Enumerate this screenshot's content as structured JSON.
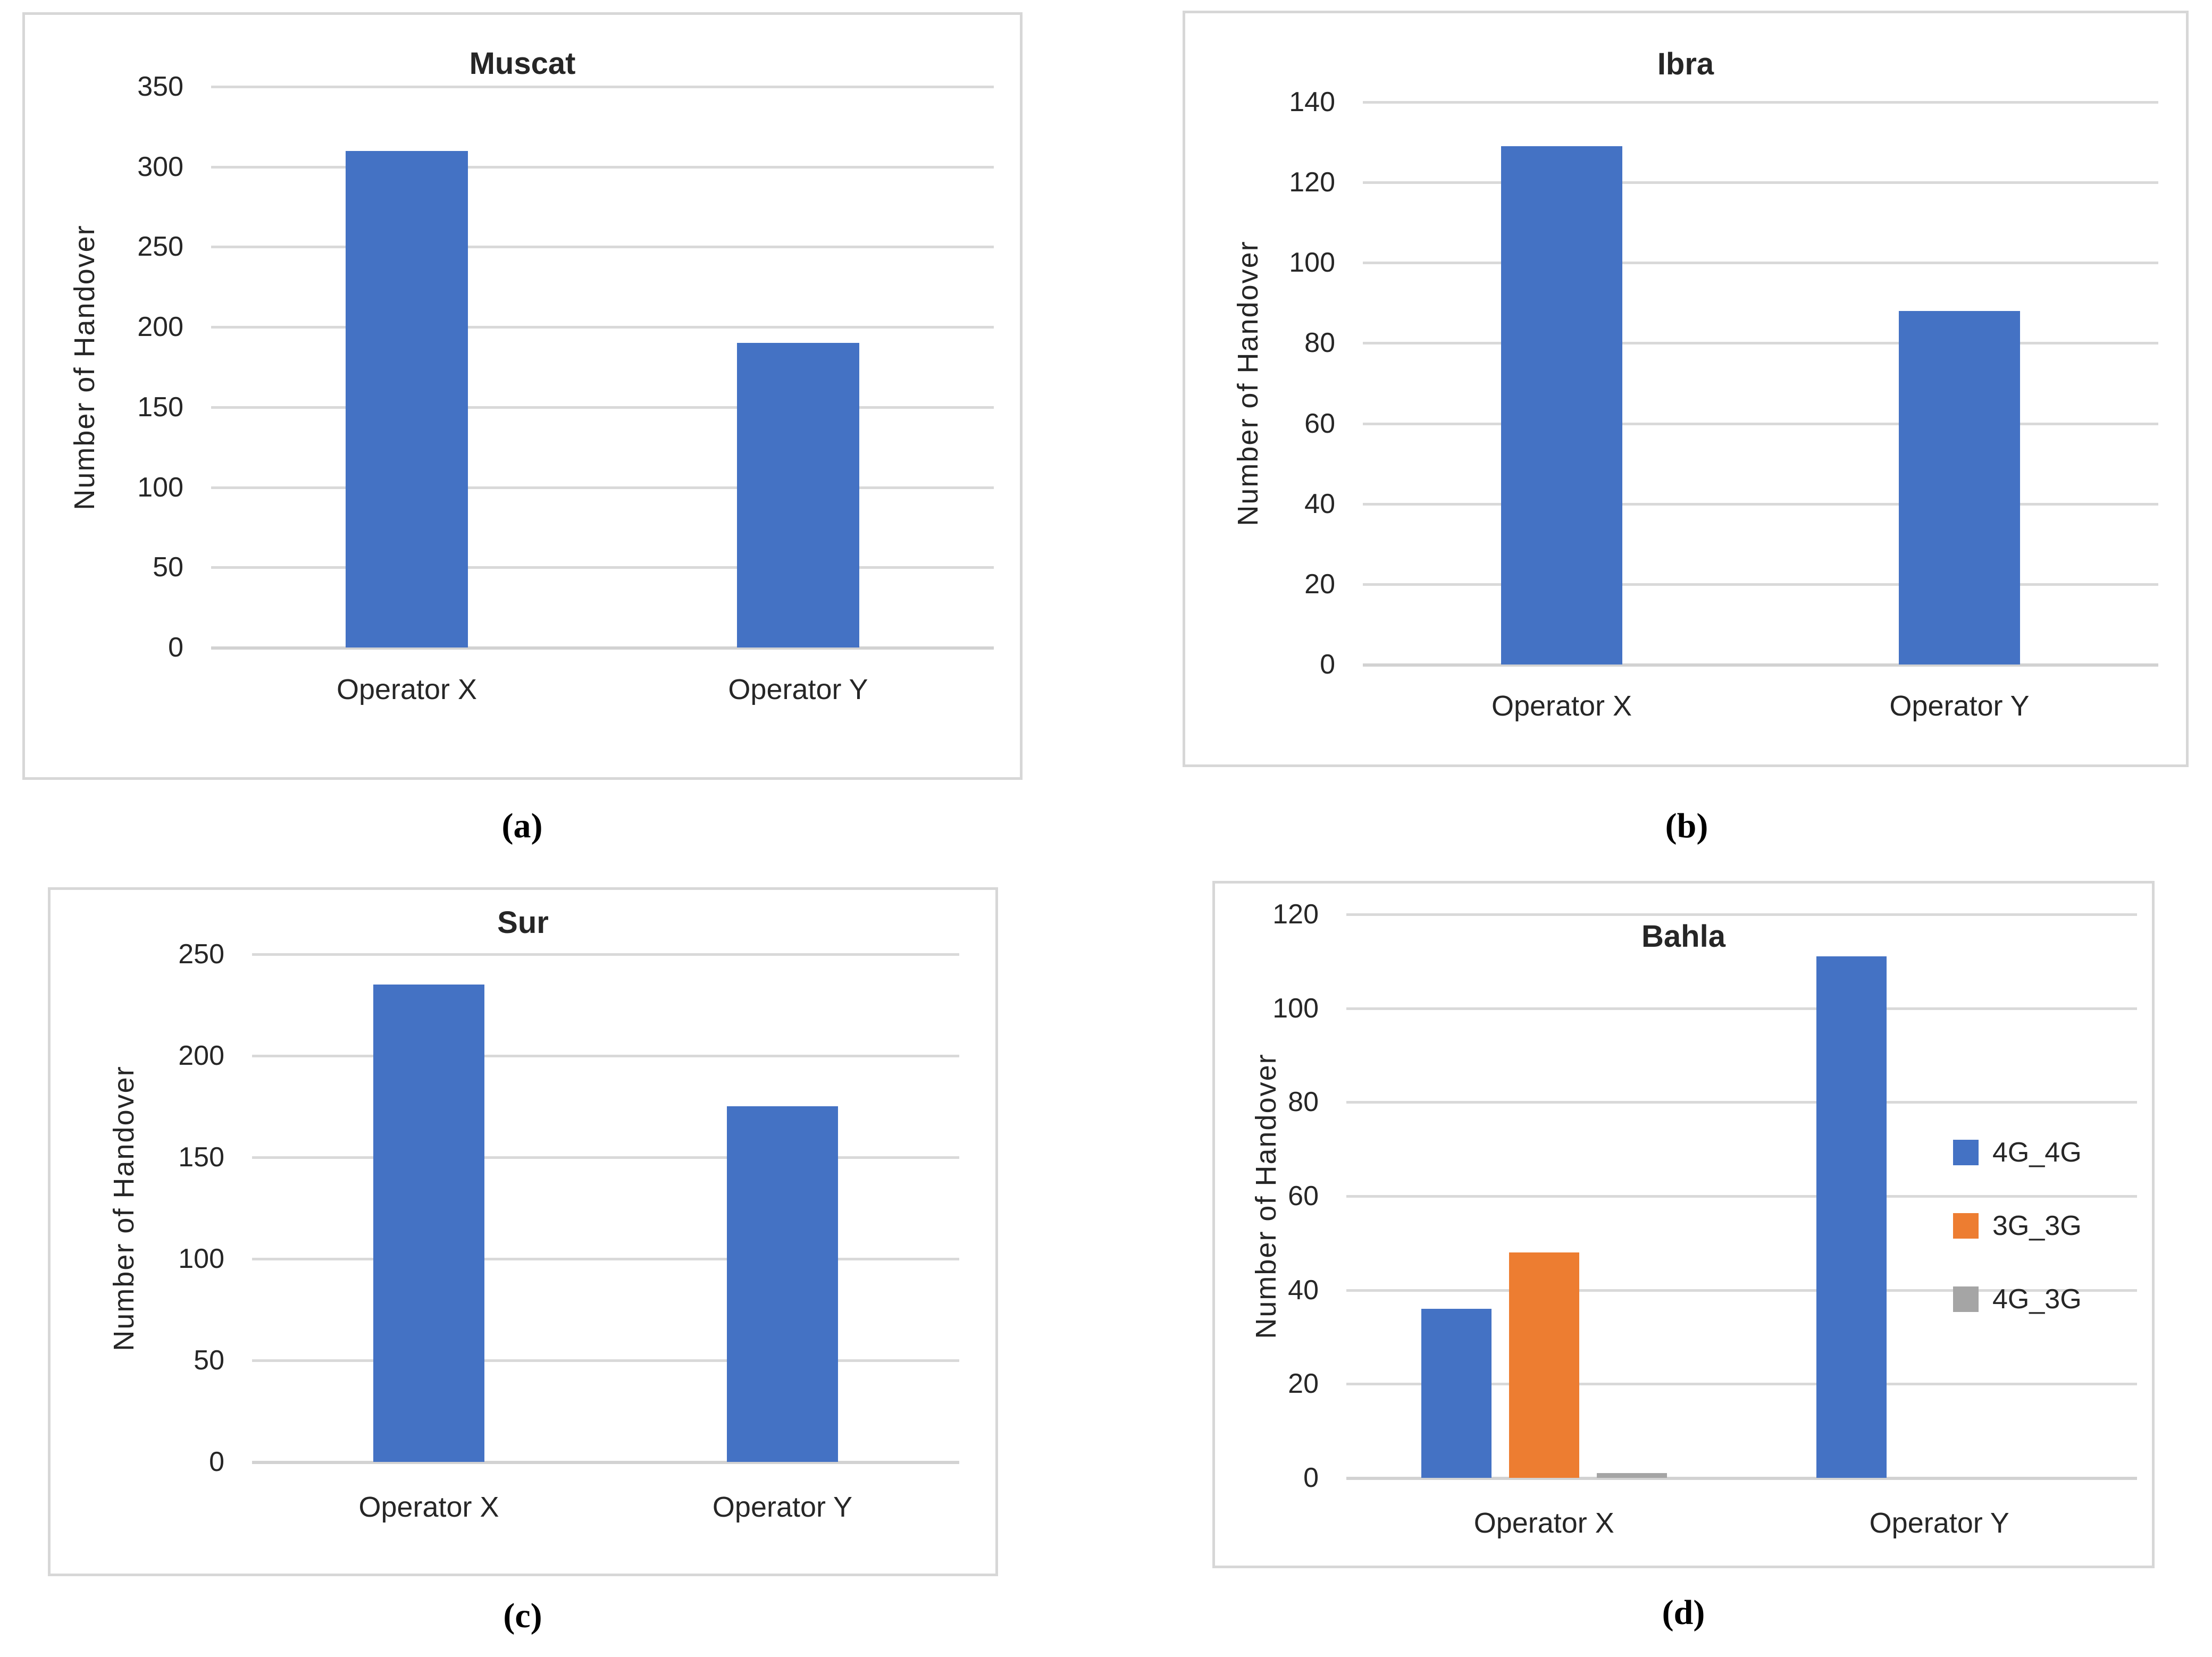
{
  "palette": {
    "bar_blue": "#4472C4",
    "bar_orange": "#ED7D31",
    "bar_gray": "#A5A5A5",
    "gridline": "#D9D9D9",
    "panel_border": "#D7D7D7",
    "text": "#262626"
  },
  "chart_data": [
    {
      "type": "bar",
      "title": "Muscat",
      "ylabel": "Number of Handover",
      "categories": [
        "Operator X",
        "Operator Y"
      ],
      "values": [
        310,
        190
      ],
      "bar_color": "#4472C4",
      "ylim": [
        0,
        350
      ],
      "ytick_step": 50,
      "grid": true,
      "legend": null,
      "caption": "(a)"
    },
    {
      "type": "bar",
      "title": "Ibra",
      "ylabel": "Number of Handover",
      "categories": [
        "Operator X",
        "Operator Y"
      ],
      "values": [
        129,
        88
      ],
      "bar_color": "#4472C4",
      "ylim": [
        0,
        140
      ],
      "ytick_step": 20,
      "grid": true,
      "legend": null,
      "caption": "(b)"
    },
    {
      "type": "bar",
      "title": "Sur",
      "ylabel": "Number of Handover",
      "categories": [
        "Operator X",
        "Operator Y"
      ],
      "values": [
        235,
        175
      ],
      "bar_color": "#4472C4",
      "ylim": [
        0,
        250
      ],
      "ytick_step": 50,
      "grid": true,
      "legend": null,
      "caption": "(c)"
    },
    {
      "type": "bar",
      "title": "Bahla",
      "ylabel": "Number of Handover",
      "categories": [
        "Operator X",
        "Operator Y"
      ],
      "series": [
        {
          "name": "4G_4G",
          "color": "#4472C4",
          "values": [
            36,
            111
          ]
        },
        {
          "name": "3G_3G",
          "color": "#ED7D31",
          "values": [
            48,
            0
          ]
        },
        {
          "name": "4G_3G",
          "color": "#A5A5A5",
          "values": [
            1,
            0
          ]
        }
      ],
      "ylim": [
        0,
        120
      ],
      "ytick_step": 20,
      "grid": true,
      "legend": {
        "position": "right"
      },
      "caption": "(d)"
    }
  ]
}
